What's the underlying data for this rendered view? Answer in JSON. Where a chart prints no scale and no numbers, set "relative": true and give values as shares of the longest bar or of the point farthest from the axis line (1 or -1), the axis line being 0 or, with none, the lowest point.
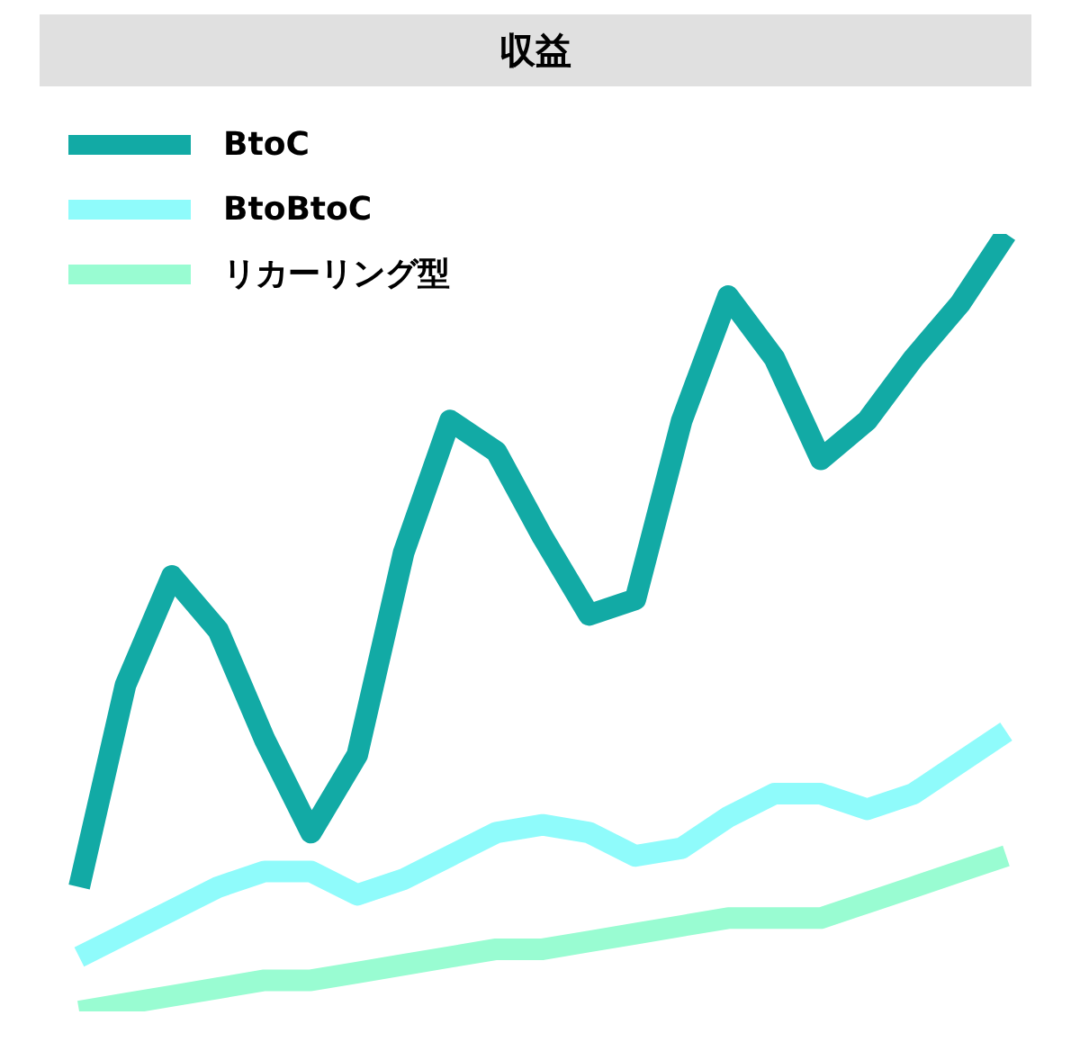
{
  "chart_data": {
    "type": "line",
    "title": "収益",
    "relative": true,
    "legend": "top left",
    "marker": "none",
    "line_style": "solid",
    "categories": [
      null,
      null,
      null,
      null,
      null,
      null,
      null,
      null,
      null,
      null,
      null,
      null,
      null,
      null,
      null,
      null,
      null,
      null,
      null,
      null,
      null
    ],
    "series": [
      {
        "name": "BtoC",
        "color": "#12aaa5",
        "values": [
          0.16,
          0.42,
          0.56,
          0.49,
          0.35,
          0.23,
          0.33,
          0.59,
          0.76,
          0.72,
          0.61,
          0.51,
          0.53,
          0.76,
          0.92,
          0.84,
          0.71,
          0.76,
          0.84,
          0.91,
          1
        ]
      },
      {
        "name": "BtoBtoC",
        "color": "#8ffbfb",
        "values": [
          0.07,
          0.1,
          0.13,
          0.16,
          0.18,
          0.18,
          0.15,
          0.17,
          0.2,
          0.23,
          0.24,
          0.23,
          0.2,
          0.21,
          0.25,
          0.28,
          0.28,
          0.26,
          0.28,
          0.32,
          0.36
        ]
      },
      {
        "name": "リカーリング型",
        "color": "#99fcd2",
        "values": [
          0,
          0.01,
          0.02,
          0.03,
          0.04,
          0.04,
          0.05,
          0.06,
          0.07,
          0.08,
          0.08,
          0.09,
          0.1,
          0.11,
          0.12,
          0.12,
          0.12,
          0.14,
          0.16,
          0.18,
          0.2
        ]
      }
    ]
  }
}
